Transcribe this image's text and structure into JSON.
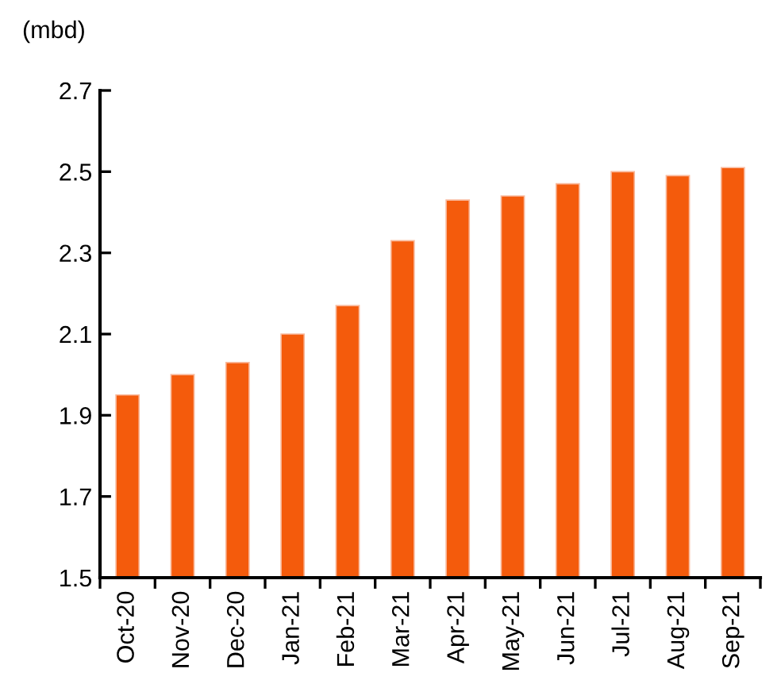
{
  "chart_data": {
    "type": "bar",
    "ylabel": "(mbd)",
    "categories": [
      "Oct-20",
      "Nov-20",
      "Dec-20",
      "Jan-21",
      "Feb-21",
      "Mar-21",
      "Apr-21",
      "May-21",
      "Jun-21",
      "Jul-21",
      "Aug-21",
      "Sep-21"
    ],
    "values": [
      1.95,
      2.0,
      2.03,
      2.1,
      2.17,
      2.33,
      2.43,
      2.44,
      2.47,
      2.5,
      2.49,
      2.51
    ],
    "color": "#f45b0c",
    "ylim": [
      1.5,
      2.7
    ],
    "yticks": [
      1.5,
      1.7,
      1.9,
      2.1,
      2.3,
      2.5,
      2.7
    ],
    "grid": false,
    "legend": false
  }
}
